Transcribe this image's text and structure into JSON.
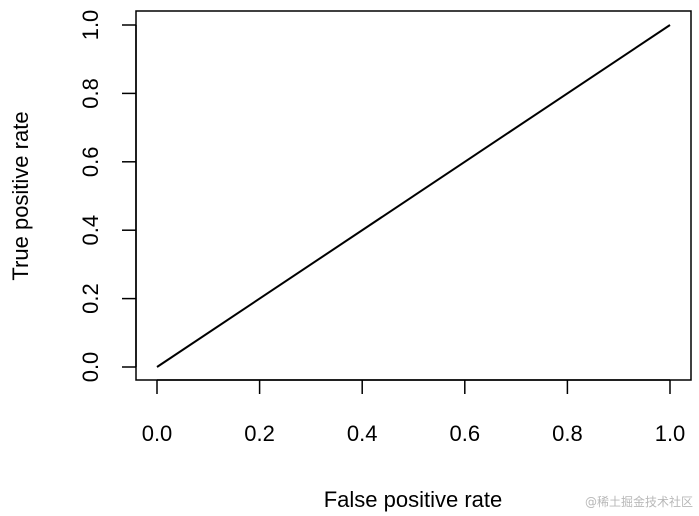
{
  "chart_data": {
    "type": "line",
    "title": "",
    "xlabel": "False positive rate",
    "ylabel": "True positive rate",
    "xlim": [
      0,
      1
    ],
    "ylim": [
      0,
      1
    ],
    "x_ticks": [
      "0.0",
      "0.2",
      "0.4",
      "0.6",
      "0.8",
      "1.0"
    ],
    "y_ticks": [
      "0.0",
      "0.2",
      "0.4",
      "0.6",
      "0.8",
      "1.0"
    ],
    "grid": false,
    "legend": "none",
    "series": [
      {
        "x": [
          0.0,
          1.0
        ],
        "y": [
          0.0,
          1.0
        ],
        "color": "#000000"
      }
    ]
  },
  "watermark": "@稀土掘金技术社区"
}
